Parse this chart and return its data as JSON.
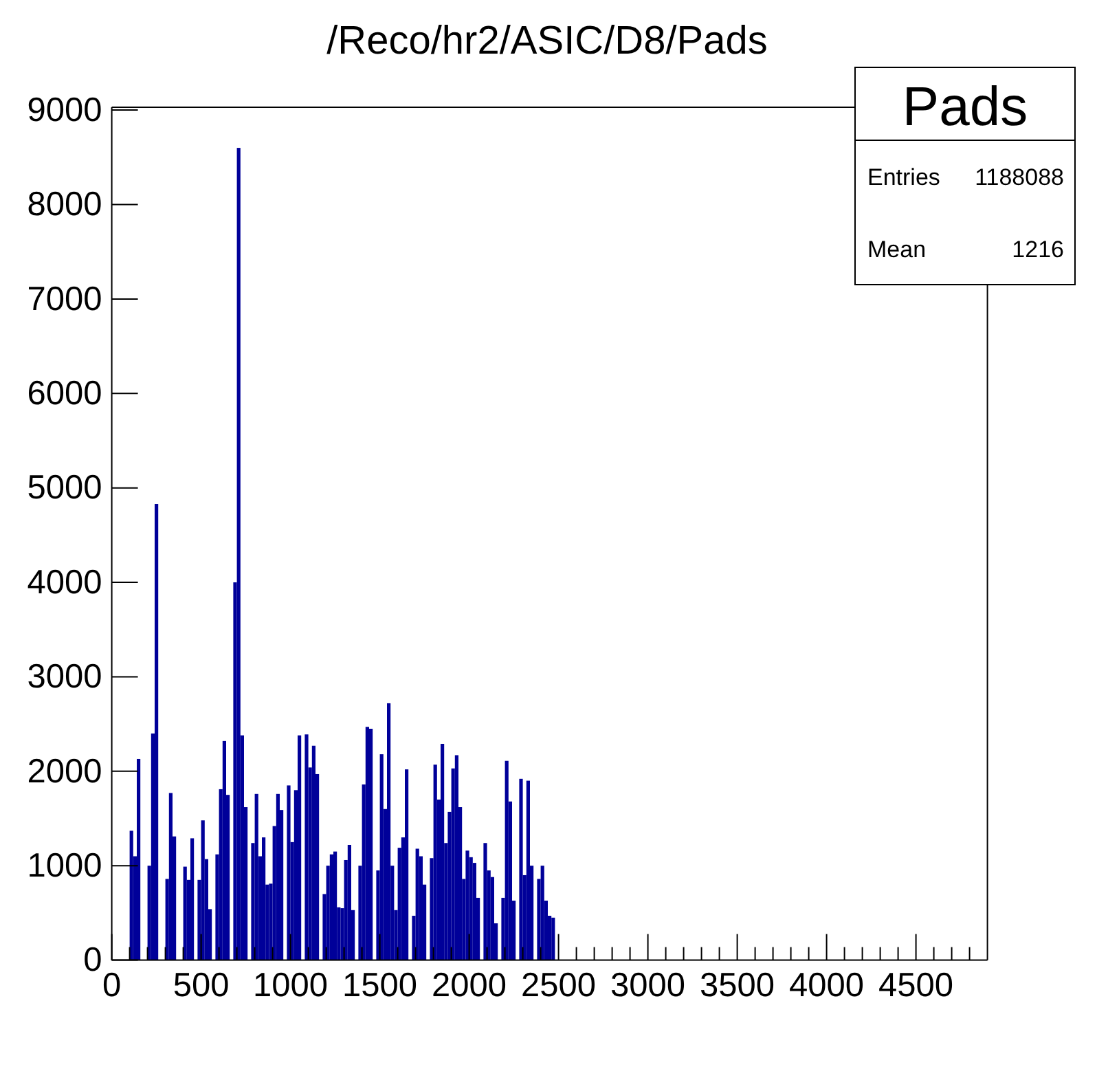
{
  "chart_data": {
    "type": "histogram",
    "title": "/Reco/hr2/ASIC/D8/Pads",
    "annotations": [
      "Pads",
      "Entries 1188088",
      "Mean 1216"
    ],
    "color": "#000099",
    "bins": [
      100,
      120,
      140,
      160,
      200,
      220,
      240,
      260,
      300,
      320,
      340,
      360,
      400,
      420,
      440,
      460,
      480,
      500,
      520,
      540,
      560,
      580,
      600,
      620,
      640,
      660,
      680,
      700,
      720,
      740,
      760,
      780,
      800,
      820,
      840,
      860,
      880,
      900,
      920,
      940,
      960,
      980,
      1000,
      1020,
      1040,
      1060,
      1080,
      1100,
      1120,
      1140,
      1160,
      1180,
      1200,
      1220,
      1240,
      1260,
      1280,
      1300,
      1320,
      1340,
      1360,
      1380,
      1400,
      1420,
      1440,
      1460,
      1480,
      1500,
      1520,
      1540,
      1560,
      1580,
      1600,
      1620,
      1640,
      1660,
      1680,
      1700,
      1720,
      1740,
      1760,
      1780,
      1800,
      1820,
      1840,
      1860,
      1880,
      1900,
      1920,
      1940,
      1960,
      1980,
      2000,
      2020,
      2040,
      2060,
      2080,
      2100,
      2120,
      2140,
      2160,
      2180,
      2200,
      2220,
      2240,
      2260,
      2280,
      2300,
      2320,
      2340,
      2360,
      2380,
      2400,
      2420,
      2440,
      2460,
      2480
    ],
    "values": [
      1370,
      1100,
      2130,
      0,
      1000,
      2400,
      4830,
      0,
      860,
      1770,
      1310,
      0,
      990,
      850,
      1290,
      0,
      850,
      1480,
      1070,
      540,
      0,
      1120,
      1810,
      2320,
      1750,
      0,
      4000,
      8600,
      2380,
      1620,
      0,
      1240,
      1760,
      1100,
      1300,
      800,
      810,
      1420,
      1760,
      1590,
      0,
      1850,
      1250,
      1800,
      2380,
      0,
      2390,
      2040,
      2270,
      1970,
      0,
      700,
      1000,
      1120,
      1150,
      560,
      550,
      1060,
      1220,
      530,
      0,
      1000,
      1860,
      2470,
      2450,
      0,
      950,
      2180,
      1600,
      2720,
      1000,
      530,
      1190,
      1300,
      2020,
      0,
      470,
      1180,
      1100,
      800,
      0,
      1080,
      2070,
      1700,
      2290,
      1240,
      1570,
      2030,
      2170,
      1620,
      860,
      1160,
      1090,
      1030,
      660,
      0,
      1240,
      950,
      880,
      390,
      0,
      660,
      2110,
      1680,
      630,
      0,
      1920,
      900,
      1900,
      1000,
      0,
      860,
      1000,
      630,
      470,
      450
    ],
    "xlim": [
      0,
      4900
    ],
    "xticks": [
      0,
      {
        "value": 100,
        "label": null
      },
      {
        "value": 200,
        "label": null
      },
      {
        "value": 300,
        "label": null
      },
      {
        "value": 400,
        "label": null
      },
      500,
      {
        "value": 600,
        "label": null
      },
      {
        "value": 700,
        "label": null
      },
      {
        "value": 800,
        "label": null
      },
      {
        "value": 900,
        "label": null
      },
      1000,
      {
        "value": 1100,
        "label": null
      },
      {
        "value": 1200,
        "label": null
      },
      {
        "value": 1300,
        "label": null
      },
      {
        "value": 1400,
        "label": null
      },
      1500,
      {
        "value": 1600,
        "label": null
      },
      {
        "value": 1700,
        "label": null
      },
      {
        "value": 1800,
        "label": null
      },
      {
        "value": 1900,
        "label": null
      },
      2000,
      {
        "value": 2100,
        "label": null
      },
      {
        "value": 2200,
        "label": null
      },
      {
        "value": 2300,
        "label": null
      },
      {
        "value": 2400,
        "label": null
      },
      2500,
      {
        "value": 2600,
        "label": null
      },
      {
        "value": 2700,
        "label": null
      },
      {
        "value": 2800,
        "label": null
      },
      {
        "value": 2900,
        "label": null
      },
      3000,
      {
        "value": 3100,
        "label": null
      },
      {
        "value": 3200,
        "label": null
      },
      {
        "value": 3300,
        "label": null
      },
      {
        "value": 3400,
        "label": null
      },
      3500,
      {
        "value": 3600,
        "label": null
      },
      {
        "value": 3700,
        "label": null
      },
      {
        "value": 3800,
        "label": null
      },
      {
        "value": 3900,
        "label": null
      },
      4000,
      {
        "value": 4100,
        "label": null
      },
      {
        "value": 4200,
        "label": null
      },
      {
        "value": 4300,
        "label": null
      },
      {
        "value": 4400,
        "label": null
      },
      4500,
      {
        "value": 4600,
        "label": null
      },
      {
        "value": 4700,
        "label": null
      },
      {
        "value": 4800,
        "label": null
      }
    ],
    "ylim": [
      0,
      9030
    ],
    "yticks": [
      0,
      1000,
      2000,
      3000,
      4000,
      5000,
      6000,
      7000,
      8000,
      9000
    ]
  }
}
